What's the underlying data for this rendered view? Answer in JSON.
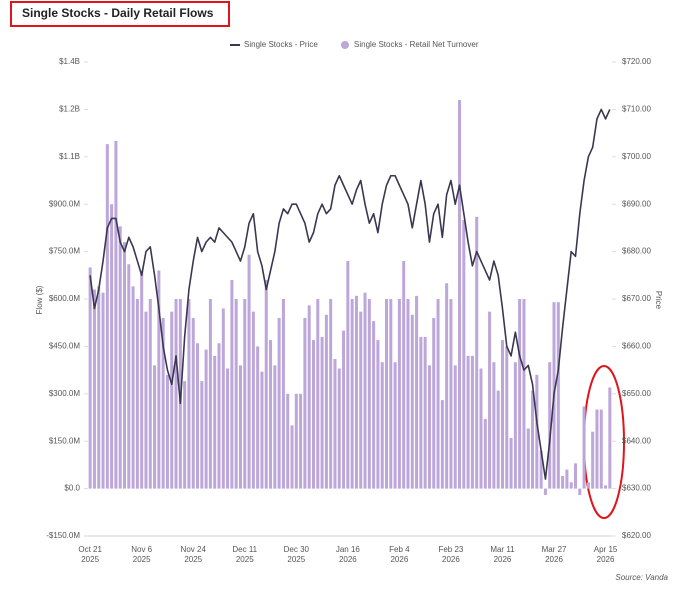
{
  "chart_data": {
    "type": "bar-line",
    "title": "Single Stocks - Daily Retail Flows",
    "y_label": "Flow ($)",
    "y2_label": "Price",
    "source": "Source: Vanda",
    "categories": [
      "Oct 21",
      null,
      null,
      null,
      null,
      null,
      null,
      null,
      null,
      null,
      null,
      null,
      "Nov 6",
      null,
      null,
      null,
      null,
      null,
      null,
      null,
      null,
      null,
      null,
      null,
      "Nov 24",
      null,
      null,
      null,
      null,
      null,
      null,
      null,
      null,
      null,
      null,
      null,
      "Dec 11",
      null,
      null,
      null,
      null,
      null,
      null,
      null,
      null,
      null,
      null,
      null,
      "Dec 30",
      null,
      null,
      null,
      null,
      null,
      null,
      null,
      null,
      null,
      null,
      null,
      "Jan 16",
      null,
      null,
      null,
      null,
      null,
      null,
      null,
      null,
      null,
      null,
      null,
      "Feb 4",
      null,
      null,
      null,
      null,
      null,
      null,
      null,
      null,
      null,
      null,
      null,
      "Feb 23",
      null,
      null,
      null,
      null,
      null,
      null,
      null,
      null,
      null,
      null,
      null,
      "Mar 11",
      null,
      null,
      null,
      null,
      null,
      null,
      null,
      null,
      null,
      null,
      null,
      "Mar 27",
      null,
      null,
      null,
      null,
      null,
      null,
      null,
      null,
      null,
      null,
      null,
      "Apr 15",
      null
    ],
    "category_years": [
      "2025",
      null,
      null,
      null,
      null,
      null,
      null,
      null,
      null,
      null,
      null,
      null,
      "2025",
      null,
      null,
      null,
      null,
      null,
      null,
      null,
      null,
      null,
      null,
      null,
      "2025",
      null,
      null,
      null,
      null,
      null,
      null,
      null,
      null,
      null,
      null,
      null,
      "2025",
      null,
      null,
      null,
      null,
      null,
      null,
      null,
      null,
      null,
      null,
      null,
      "2025",
      null,
      null,
      null,
      null,
      null,
      null,
      null,
      null,
      null,
      null,
      null,
      "2026",
      null,
      null,
      null,
      null,
      null,
      null,
      null,
      null,
      null,
      null,
      null,
      "2026",
      null,
      null,
      null,
      null,
      null,
      null,
      null,
      null,
      null,
      null,
      null,
      "2026",
      null,
      null,
      null,
      null,
      null,
      null,
      null,
      null,
      null,
      null,
      null,
      "2026",
      null,
      null,
      null,
      null,
      null,
      null,
      null,
      null,
      null,
      null,
      null,
      "2026",
      null,
      null,
      null,
      null,
      null,
      null,
      null,
      null,
      null,
      null,
      null,
      "2026",
      null
    ],
    "series": [
      {
        "name": "Single Stocks - Price",
        "color": "#3a3850",
        "axis": "y2",
        "values": [
          675,
          668,
          672,
          678,
          685,
          687,
          687,
          682,
          680,
          683,
          681,
          678,
          675,
          680,
          681,
          675,
          668,
          660,
          655,
          652,
          658,
          648,
          662,
          672,
          678,
          683,
          680,
          682,
          683,
          682,
          685,
          684,
          683,
          682,
          680,
          678,
          681,
          686,
          688,
          680,
          677,
          672,
          676,
          680,
          686,
          689,
          688,
          690,
          690,
          688,
          686,
          682,
          684,
          688,
          690,
          688,
          689,
          694,
          696,
          694,
          692,
          690,
          693,
          695,
          690,
          686,
          688,
          684,
          690,
          694,
          696,
          696,
          694,
          692,
          690,
          685,
          690,
          695,
          690,
          682,
          688,
          690,
          683,
          692,
          695,
          690,
          694,
          688,
          682,
          677,
          680,
          678,
          676,
          674,
          678,
          675,
          668,
          660,
          658,
          663,
          658,
          655,
          656,
          652,
          644,
          638,
          632,
          640,
          650,
          655,
          664,
          672,
          680,
          679,
          688,
          695,
          700,
          702,
          708,
          710,
          708,
          710
        ]
      },
      {
        "name": "Single Stocks - Retail Net Turnover",
        "color": "#bca6da",
        "axis": "y",
        "values": [
          700,
          630,
          640,
          620,
          1090,
          900,
          1100,
          830,
          780,
          710,
          640,
          600,
          690,
          560,
          600,
          390,
          690,
          540,
          360,
          560,
          600,
          600,
          340,
          600,
          540,
          460,
          340,
          440,
          600,
          420,
          460,
          570,
          380,
          660,
          600,
          390,
          600,
          740,
          560,
          450,
          370,
          660,
          470,
          390,
          540,
          600,
          300,
          200,
          300,
          300,
          540,
          580,
          470,
          600,
          480,
          550,
          600,
          410,
          380,
          500,
          720,
          600,
          610,
          560,
          620,
          600,
          530,
          470,
          400,
          600,
          600,
          400,
          600,
          720,
          600,
          550,
          610,
          480,
          480,
          390,
          540,
          600,
          280,
          650,
          600,
          390,
          1230,
          850,
          420,
          420,
          860,
          380,
          220,
          560,
          400,
          310,
          470,
          450,
          160,
          400,
          600,
          600,
          190,
          310,
          360,
          120,
          -20,
          400,
          590,
          590,
          40,
          60,
          20,
          80,
          -20,
          260,
          20,
          180,
          250,
          250,
          10,
          320
        ]
      }
    ],
    "ylim": [
      -150,
      1350
    ],
    "yticks": [
      {
        "value": -150,
        "label": "-$150.0M"
      },
      {
        "value": 0,
        "label": "$0.0"
      },
      {
        "value": 150,
        "label": "$150.0M"
      },
      {
        "value": 300,
        "label": "$300.0M"
      },
      {
        "value": 450,
        "label": "$450.0M"
      },
      {
        "value": 600,
        "label": "$600.0M"
      },
      {
        "value": 750,
        "label": "$750.0M"
      },
      {
        "value": 900,
        "label": "$900.0M"
      },
      {
        "value": 1050,
        "label": "$1.1B"
      },
      {
        "value": 1200,
        "label": "$1.2B"
      },
      {
        "value": 1350,
        "label": "$1.4B"
      }
    ],
    "y2lim": [
      620,
      720
    ],
    "y2ticks": [
      {
        "value": 620,
        "label": "$620.00"
      },
      {
        "value": 630,
        "label": "$630.00"
      },
      {
        "value": 640,
        "label": "$640.00"
      },
      {
        "value": 650,
        "label": "$650.00"
      },
      {
        "value": 660,
        "label": "$660.00"
      },
      {
        "value": 670,
        "label": "$670.00"
      },
      {
        "value": 680,
        "label": "$680.00"
      },
      {
        "value": 690,
        "label": "$690.00"
      },
      {
        "value": 700,
        "label": "$700.00"
      },
      {
        "value": 710,
        "label": "$710.00"
      },
      {
        "value": 720,
        "label": "$720.00"
      }
    ],
    "grid": false
  }
}
